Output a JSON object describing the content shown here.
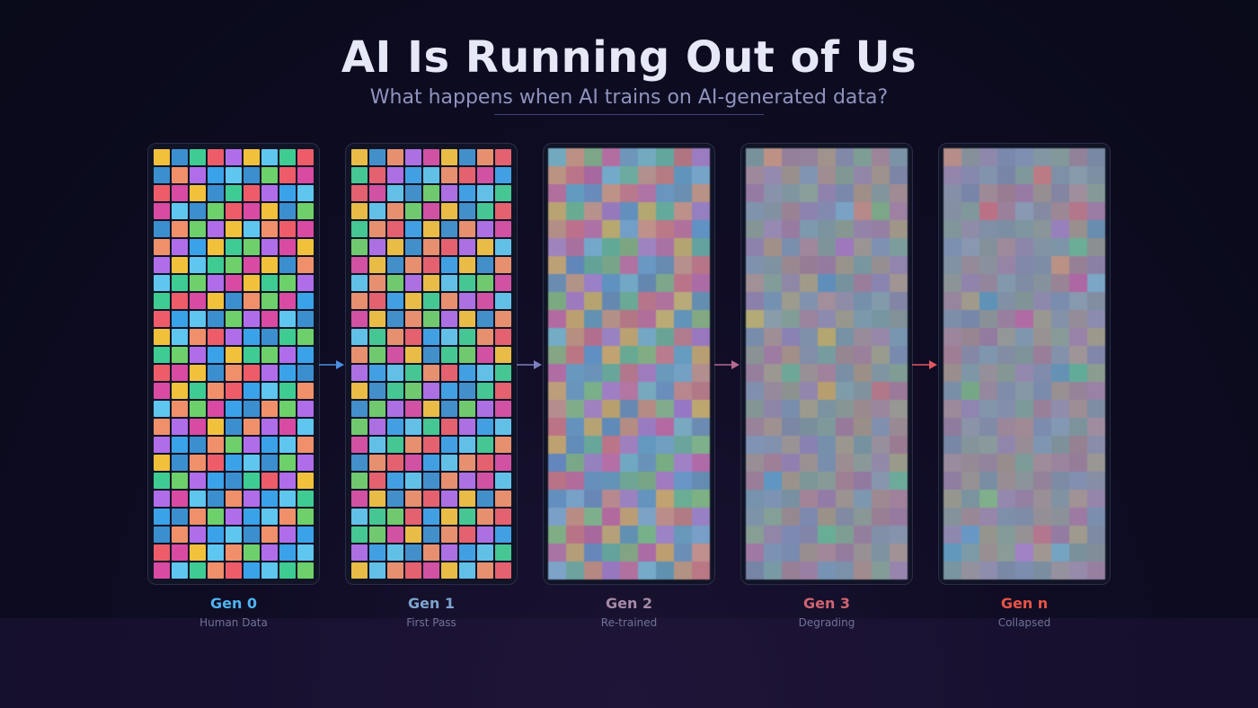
{
  "header": {
    "title": "AI Is Running Out of Us",
    "subtitle": "What happens when AI trains on AI-generated data?"
  },
  "palette": [
    "#3aa2e9",
    "#f2c13c",
    "#5ec6ef",
    "#3b8fcf",
    "#3ecc92",
    "#f0906a",
    "#6dd06a",
    "#ee5c6a",
    "#b06de9",
    "#d94aa3"
  ],
  "generations": [
    {
      "label": "Gen 0",
      "sublabel": "Human Data",
      "color": "#4fb3f0",
      "arrow_color": "#4a90e2"
    },
    {
      "label": "Gen 1",
      "sublabel": "First Pass",
      "color": "#7ea4cf",
      "arrow_color": "#7b7fbf"
    },
    {
      "label": "Gen 2",
      "sublabel": "Re-trained",
      "color": "#a58aa8",
      "arrow_color": "#b66a8e"
    },
    {
      "label": "Gen 3",
      "sublabel": "Degrading",
      "color": "#cf6472",
      "arrow_color": "#e0585f"
    },
    {
      "label": "Gen n",
      "sublabel": "Collapsed",
      "color": "#ea5446"
    }
  ]
}
